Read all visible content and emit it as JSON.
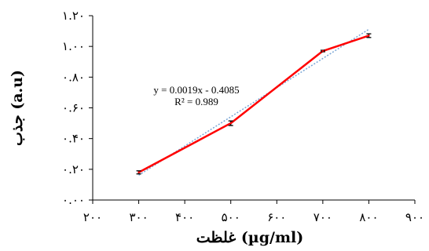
{
  "chart_data": {
    "type": "line",
    "title": "",
    "xlabel": "غلظت (µg/ml)",
    "ylabel": "جذب (a.u)",
    "xlim": [
      200,
      900
    ],
    "ylim": [
      0.0,
      1.2
    ],
    "x_ticks": [
      200,
      300,
      400,
      500,
      600,
      700,
      800,
      900
    ],
    "x_tick_labels": [
      "۲۰۰",
      "۳۰۰",
      "۴۰۰",
      "۵۰۰",
      "۶۰۰",
      "۷۰۰",
      "۸۰۰",
      "۹۰۰"
    ],
    "y_ticks": [
      0.0,
      0.2,
      0.4,
      0.6,
      0.8,
      1.0,
      1.2
    ],
    "y_tick_labels": [
      "۰.۰۰",
      "۰.۲۰",
      "۰.۴۰",
      "۰.۶۰",
      "۰.۸۰",
      "۱.۰۰",
      "۱.۲۰"
    ],
    "grid": false,
    "legend": "none",
    "series": [
      {
        "x": [
          300,
          500,
          700,
          800
        ],
        "y": [
          0.18,
          0.5,
          0.97,
          1.07
        ],
        "error": [
          0.01,
          0.015,
          0.005,
          0.012
        ],
        "color": "#ff0000"
      }
    ],
    "trendline": {
      "slope": 0.0019,
      "intercept": -0.4085,
      "color": "#7aa6d6",
      "equation": "y = 0.0019x - 0.4085",
      "r2": "R² = 0.989"
    }
  }
}
